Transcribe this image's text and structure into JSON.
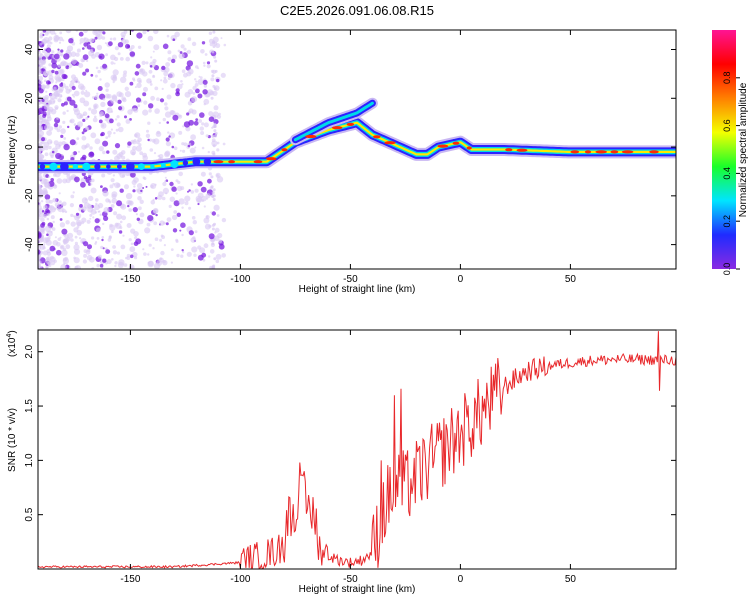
{
  "title": "C2E5.2026.091.06.08.R15",
  "colors": {
    "signal_line": "#e8282b",
    "scatter_light": "#d9c8f4",
    "scatter_dark": "#7a1ee0",
    "colorbar_stops": [
      "#8a2be2",
      "#1f2bff",
      "#00e5ff",
      "#19ff2a",
      "#f4ff00",
      "#ff8000",
      "#ff0000",
      "#ff1493"
    ]
  },
  "chart_data": [
    {
      "type": "heatmap",
      "xlabel": "Height of straight line (km)",
      "ylabel": "Frequency (Hz)",
      "xlim": [
        -192,
        98
      ],
      "ylim": [
        -50,
        48
      ],
      "x_ticks": [
        -150,
        -100,
        -50,
        0,
        50
      ],
      "y_ticks": [
        -40,
        -20,
        0,
        20,
        40
      ],
      "grid": false,
      "colorbar": {
        "label": "Normalized spectral amplitude",
        "range": [
          0,
          1
        ],
        "ticks": [
          0.0,
          0.2,
          0.4,
          0.6,
          0.8
        ]
      },
      "ridge": {
        "x": [
          -192,
          -140,
          -120,
          -100,
          -88,
          -75,
          -60,
          -47,
          -40,
          -30,
          -20,
          -15,
          -10,
          -5,
          0,
          5,
          20,
          50,
          98
        ],
        "frequency": [
          -8,
          -8,
          -6,
          -6,
          -6,
          2,
          7,
          10,
          5,
          1,
          -3,
          -3,
          0,
          1,
          2,
          -1,
          -1,
          -2,
          -2
        ]
      },
      "upper_branch": {
        "x": [
          -75,
          -60,
          -47,
          -40
        ],
        "frequency": [
          3,
          10,
          14,
          18
        ]
      }
    },
    {
      "type": "line",
      "xlabel": "Height of straight line (km)",
      "ylabel": "SNR (10 * v/v)",
      "y_scale_note": "(x10",
      "y_scale_exp": "4",
      "y_scale_close": ")",
      "xlim": [
        -192,
        98
      ],
      "ylim": [
        0,
        2.2
      ],
      "x_ticks": [
        -150,
        -100,
        -50,
        0,
        50
      ],
      "y_ticks": [
        0.5,
        1.0,
        1.5,
        2.0
      ],
      "y_tick_labels": [
        "0.5",
        "1.0",
        "1.5",
        "2.0"
      ],
      "grid": false,
      "envelope": {
        "x": [
          -192,
          -130,
          -115,
          -100,
          -90,
          -80,
          -75,
          -72,
          -70,
          -65,
          -60,
          -55,
          -50,
          -45,
          -40,
          -35,
          -30,
          -25,
          -20,
          -15,
          -10,
          -5,
          0,
          10,
          20,
          30,
          40,
          50,
          60,
          70,
          80,
          98
        ],
        "y": [
          0.02,
          0.02,
          0.04,
          0.06,
          0.12,
          0.2,
          0.35,
          0.45,
          0.35,
          0.22,
          0.12,
          0.08,
          0.06,
          0.08,
          0.15,
          0.55,
          0.75,
          0.75,
          0.85,
          0.95,
          1.05,
          1.15,
          1.25,
          1.45,
          1.68,
          1.82,
          1.87,
          1.9,
          1.92,
          1.93,
          1.93,
          1.92
        ]
      },
      "spikes": [
        {
          "x": -73,
          "y": 0.98
        },
        {
          "x": -71,
          "y": 0.9
        },
        {
          "x": -36,
          "y": 1.0
        },
        {
          "x": -30,
          "y": 1.6
        },
        {
          "x": -27,
          "y": 1.66
        },
        {
          "x": 90,
          "y": 2.19
        },
        {
          "x": 90.5,
          "y": 1.64
        }
      ]
    }
  ]
}
